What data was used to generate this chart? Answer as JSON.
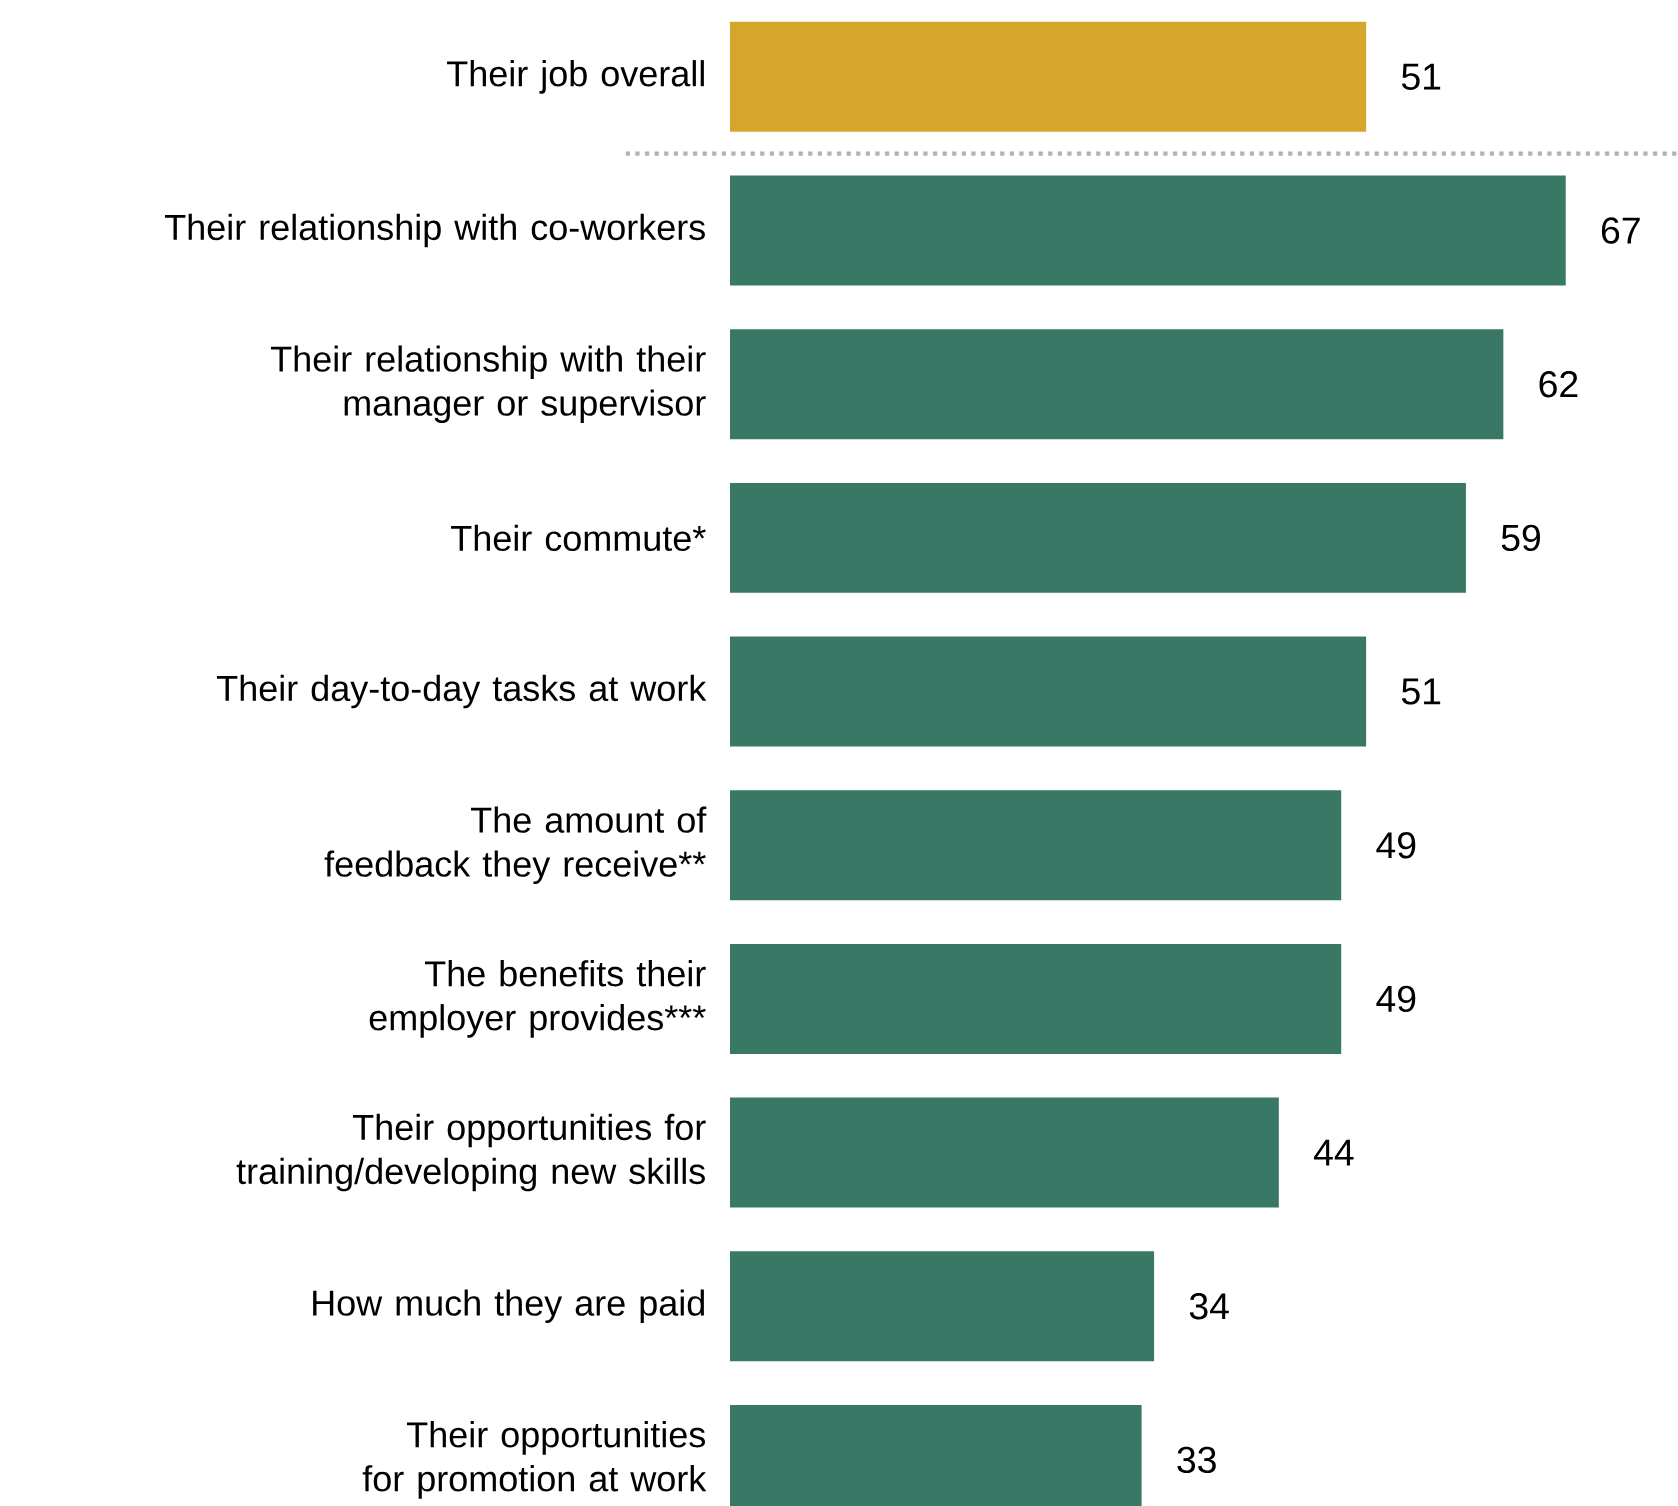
{
  "chart_data": {
    "type": "bar",
    "orientation": "horizontal",
    "categories": [
      "Their job overall",
      "Their relationship with co-workers",
      "Their relationship with their manager or supervisor",
      "Their commute*",
      "Their day-to-day tasks at work",
      "The amount of feedback they receive**",
      "The benefits their employer provides***",
      "Their opportunities for training/developing new skills",
      "How much they are paid",
      "Their opportunities for promotion at work"
    ],
    "values": [
      51,
      67,
      62,
      59,
      51,
      49,
      49,
      44,
      34,
      33
    ],
    "colors": [
      "#d4a72c",
      "#3a7866",
      "#3a7866",
      "#3a7866",
      "#3a7866",
      "#3a7866",
      "#3a7866",
      "#3a7866",
      "#3a7866",
      "#3a7866"
    ],
    "xlim": [
      0,
      76
    ],
    "data_labels": true,
    "tick_labels": "y"
  }
}
